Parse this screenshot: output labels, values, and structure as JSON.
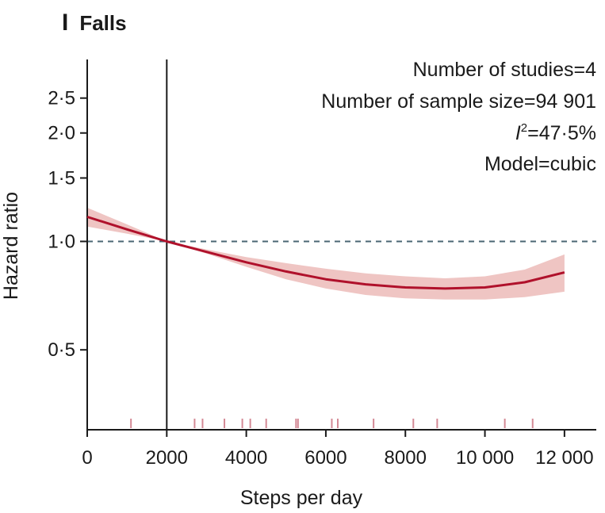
{
  "panel": {
    "letter": "I",
    "title": "Falls"
  },
  "stats": {
    "studies": "Number of studies=4",
    "sample_size": "Number of sample size=94 901",
    "i2_symbol": "I",
    "i2_sup": "2",
    "i2_value": "=47·5%",
    "model": "Model=cubic"
  },
  "chart_data": {
    "type": "line",
    "title": "Falls",
    "xlabel": "Steps per day",
    "ylabel": "Hazard ratio",
    "xlim": [
      0,
      12800
    ],
    "x_ticks": [
      0,
      2000,
      4000,
      6000,
      8000,
      10000,
      12000
    ],
    "x_tick_labels": [
      "0",
      "2000",
      "4000",
      "6000",
      "8000",
      "10 000",
      "12 000"
    ],
    "y_scale": "log",
    "ylim": [
      0.3,
      3.2
    ],
    "y_ticks": [
      0.5,
      1.0,
      1.5,
      2.0,
      2.5
    ],
    "y_tick_labels": [
      "0·5",
      "1·0",
      "1·5",
      "2·0",
      "2·5"
    ],
    "reference_x": 2000,
    "reference_y": 1.0,
    "colors": {
      "line": "#b0112b",
      "band": "#efc5c3",
      "refline": "#4a6673",
      "axis": "#1a1a1a",
      "rug": "#d48a96"
    },
    "series": [
      {
        "x": [
          0,
          1000,
          2000,
          3000,
          4000,
          5000,
          6000,
          7000,
          8000,
          9000,
          10000,
          11000,
          12000
        ],
        "y": [
          1.17,
          1.08,
          1.0,
          0.935,
          0.875,
          0.825,
          0.785,
          0.76,
          0.745,
          0.74,
          0.745,
          0.77,
          0.82
        ],
        "ci_lower": [
          1.1,
          1.05,
          1.0,
          0.925,
          0.85,
          0.785,
          0.74,
          0.71,
          0.695,
          0.69,
          0.69,
          0.7,
          0.725
        ],
        "ci_upper": [
          1.24,
          1.115,
          1.0,
          0.95,
          0.905,
          0.87,
          0.84,
          0.815,
          0.8,
          0.79,
          0.8,
          0.835,
          0.92
        ]
      }
    ],
    "rug_x": [
      1100,
      2700,
      2900,
      3450,
      3900,
      4100,
      4500,
      5250,
      5300,
      6150,
      6300,
      7200,
      8200,
      8800,
      10500,
      11200
    ]
  }
}
